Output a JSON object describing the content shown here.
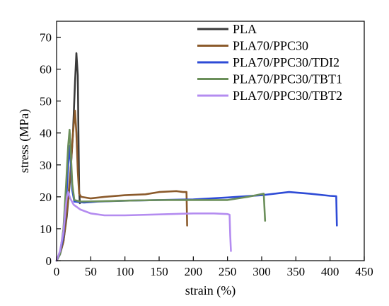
{
  "chart_data": {
    "type": "line",
    "title": "",
    "xlabel": "strain (%)",
    "ylabel": "stress (MPa)",
    "xlim": [
      0,
      450
    ],
    "ylim": [
      0,
      75
    ],
    "x_ticks": [
      0,
      50,
      100,
      150,
      200,
      250,
      300,
      350,
      400,
      450
    ],
    "y_ticks": [
      0,
      10,
      20,
      30,
      40,
      50,
      60,
      70
    ],
    "grid": false,
    "legend_position": "top-right",
    "series": [
      {
        "name": "PLA",
        "color": "#3a3a3a",
        "points": [
          [
            0,
            0
          ],
          [
            5,
            2
          ],
          [
            10,
            6
          ],
          [
            15,
            14
          ],
          [
            20,
            26
          ],
          [
            24,
            40
          ],
          [
            27,
            56
          ],
          [
            29,
            65
          ],
          [
            31,
            58
          ],
          [
            32,
            40
          ],
          [
            33,
            22
          ],
          [
            34,
            18
          ]
        ]
      },
      {
        "name": "PLA70/PPC30",
        "color": "#8b5a2b",
        "points": [
          [
            0,
            0
          ],
          [
            5,
            2
          ],
          [
            10,
            6
          ],
          [
            15,
            15
          ],
          [
            20,
            27
          ],
          [
            24,
            40
          ],
          [
            27,
            47
          ],
          [
            29,
            40
          ],
          [
            31,
            28
          ],
          [
            33,
            21
          ],
          [
            36,
            20
          ],
          [
            50,
            19.5
          ],
          [
            70,
            20
          ],
          [
            100,
            20.5
          ],
          [
            130,
            20.8
          ],
          [
            150,
            21.5
          ],
          [
            175,
            21.8
          ],
          [
            185,
            21.5
          ],
          [
            190,
            21.5
          ],
          [
            191,
            11
          ]
        ]
      },
      {
        "name": "PLA70/PPC30/TDI2",
        "color": "#2e4bd6",
        "points": [
          [
            0,
            0
          ],
          [
            5,
            2
          ],
          [
            10,
            8
          ],
          [
            14,
            18
          ],
          [
            17,
            30
          ],
          [
            19,
            36
          ],
          [
            21,
            30
          ],
          [
            23,
            22
          ],
          [
            26,
            18.5
          ],
          [
            40,
            18.2
          ],
          [
            60,
            18.5
          ],
          [
            100,
            18.8
          ],
          [
            150,
            19
          ],
          [
            200,
            19.2
          ],
          [
            250,
            19.8
          ],
          [
            300,
            20.5
          ],
          [
            340,
            21.5
          ],
          [
            370,
            21
          ],
          [
            400,
            20.3
          ],
          [
            409,
            20.2
          ],
          [
            410,
            11
          ]
        ]
      },
      {
        "name": "PLA70/PPC30/TBT1",
        "color": "#6b8f5a",
        "points": [
          [
            0,
            0
          ],
          [
            5,
            2
          ],
          [
            10,
            10
          ],
          [
            14,
            24
          ],
          [
            17,
            36
          ],
          [
            19,
            41
          ],
          [
            21,
            33
          ],
          [
            23,
            24
          ],
          [
            26,
            19
          ],
          [
            35,
            18.5
          ],
          [
            60,
            18.6
          ],
          [
            100,
            18.8
          ],
          [
            150,
            19
          ],
          [
            200,
            19
          ],
          [
            250,
            19
          ],
          [
            280,
            20
          ],
          [
            303,
            21
          ],
          [
            305,
            12.5
          ]
        ]
      },
      {
        "name": "PLA70/PPC30/TBT2",
        "color": "#b48cf0",
        "points": [
          [
            0,
            0
          ],
          [
            5,
            3
          ],
          [
            10,
            9
          ],
          [
            13,
            16
          ],
          [
            15,
            20
          ],
          [
            17,
            21.5
          ],
          [
            20,
            19.5
          ],
          [
            25,
            17.5
          ],
          [
            35,
            16
          ],
          [
            50,
            14.8
          ],
          [
            70,
            14.2
          ],
          [
            100,
            14.2
          ],
          [
            150,
            14.5
          ],
          [
            200,
            14.8
          ],
          [
            230,
            14.8
          ],
          [
            250,
            14.6
          ],
          [
            253,
            14.4
          ],
          [
            254,
            8
          ],
          [
            255,
            3
          ]
        ]
      }
    ]
  }
}
